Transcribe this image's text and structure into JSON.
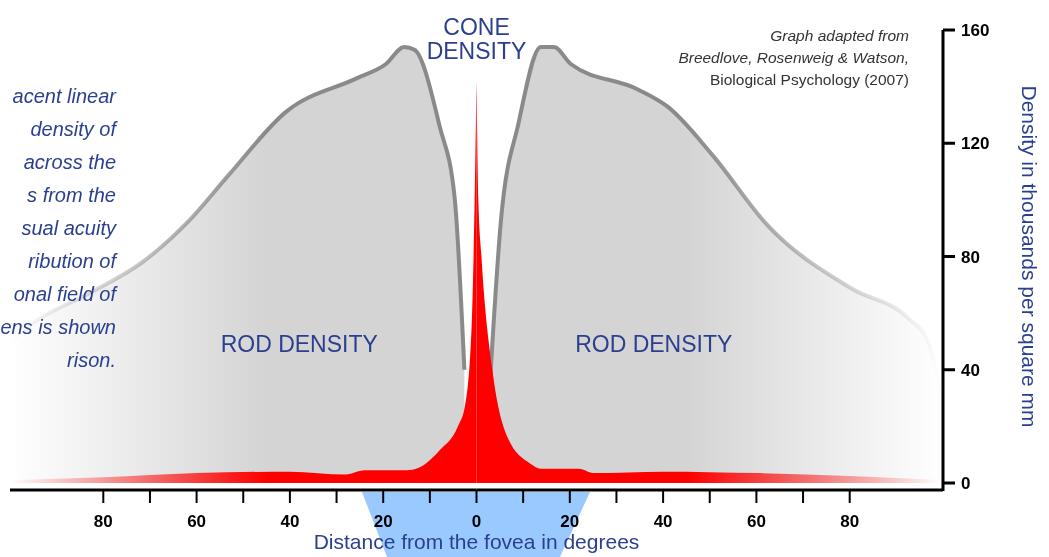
{
  "chart_data": [
    {
      "type": "area",
      "annotations": [
        "acent linear\ndensity of\nacross the\ns from the\nsual acuity\nribution of\nonal field of\nens is shown\nrison."
      ],
      "xlim": [
        100,
        0
      ],
      "ylim": [
        0,
        160
      ],
      "tick_labels": "x",
      "xticks": [
        80,
        {
          "value": 70,
          "label": null
        },
        60,
        {
          "value": 50,
          "label": null
        },
        40,
        {
          "value": 30,
          "label": null
        },
        20,
        {
          "value": 10,
          "label": null
        }
      ],
      "series": [
        {
          "name": "ROD DENSITY",
          "color": "#d4d4d4",
          "x": [
            100,
            94.6,
            83,
            71.6,
            61.7,
            53,
            40.9,
            25.6,
            19.4,
            15.5,
            13.3,
            7.9,
            4.7,
            2.6
          ],
          "values": [
            50,
            57,
            67,
            78,
            92.5,
            109,
            131,
            143,
            148,
            154,
            153,
            126,
            101,
            40
          ]
        },
        {
          "color": "#ff0000",
          "x": [
            100,
            80,
            60,
            40,
            28,
            24,
            15,
            12.5,
            7.9,
            4,
            2.5,
            1,
            0.4,
            0
          ],
          "values": [
            1,
            2,
            3.5,
            4,
            3,
            4.5,
            4.5,
            5.3,
            11.6,
            20,
            27,
            57,
            100,
            142
          ]
        }
      ]
    },
    {
      "type": "area",
      "xlabel": "Distance from the fovea in degrees",
      "ylabel": "Density in thousands per square mm",
      "annotations": [
        "Graph adapted from\nBreedlove, Rosenweig & Watson,\nBiological Psychology (2007)"
      ],
      "xlim": [
        0,
        100
      ],
      "ylim": [
        0,
        160
      ],
      "xticks": [
        0,
        {
          "value": 10,
          "label": null
        },
        20,
        {
          "value": 30,
          "label": null
        },
        40,
        {
          "value": 50,
          "label": null
        },
        60,
        {
          "value": 70,
          "label": null
        },
        80
      ],
      "yticks": [
        0,
        40,
        80,
        120,
        160
      ],
      "series": [
        {
          "name": "ROD DENSITY",
          "color": "#d4d4d4",
          "x": [
            3,
            5.2,
            9,
            13.8,
            16.6,
            20.2,
            34.6,
            40.9,
            50.5,
            62.4,
            80.6,
            92.7,
            96.8,
            99.8
          ],
          "values": [
            38.5,
            92,
            127,
            154,
            154,
            148,
            139,
            133,
            116,
            91,
            68.5,
            58,
            50,
            32
          ]
        },
        {
          "name": "CONE DENSITY",
          "color": "#ff0000",
          "x": [
            0,
            0.4,
            1.1,
            3.4,
            6.7,
            11.4,
            14,
            22,
            25,
            40,
            60,
            80,
            100
          ],
          "values": [
            142,
            100,
            79,
            40,
            16,
            7,
            5,
            5,
            3.5,
            4,
            3.5,
            2.5,
            1
          ]
        }
      ]
    }
  ]
}
